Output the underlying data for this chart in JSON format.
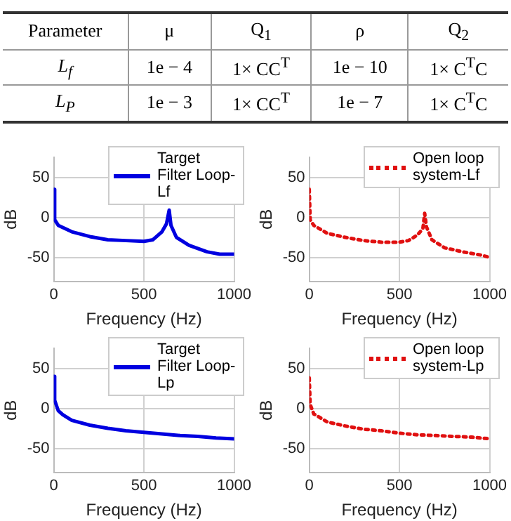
{
  "chart_data": [
    {
      "type": "other",
      "categories": [
        "Parameter",
        "μ",
        "Q$_{1}$",
        "ρ",
        "Q$_{2}$"
      ],
      "y_categories": [
        "L$_{f}$",
        "L$_{P}$"
      ],
      "cell_labels": [
        [
          "1e − 4",
          "1× CC$^{T}$",
          "1e − 10",
          "1× C$^{T}$C"
        ],
        [
          "1e − 3",
          "1× CC$^{T}$",
          "1e − 7",
          "1× C$^{T}$C"
        ]
      ]
    },
    {
      "type": "line",
      "xlabel": "Frequency (Hz)",
      "ylabel": "dB",
      "xlim": [
        0,
        1000
      ],
      "xticks": [
        0,
        500,
        1000
      ],
      "ylim": [
        -80,
        75
      ],
      "yticks": [
        -50,
        0,
        50
      ],
      "grid": true,
      "legend": "top right",
      "marker": "none",
      "line_style": "solid",
      "series": [
        {
          "name": "Target Filter Loop-Lf",
          "color": "#0000e0",
          "x": [
            0,
            5,
            25,
            100,
            200,
            300,
            400,
            500,
            550,
            600,
            625,
            640,
            650,
            680,
            750,
            850,
            920,
            1000
          ],
          "values": [
            35,
            -3,
            -10,
            -18,
            -24,
            -28,
            -29,
            -30,
            -28,
            -18,
            -8,
            9,
            -10,
            -25,
            -35,
            -43,
            -46,
            -46
          ]
        }
      ]
    },
    {
      "type": "line",
      "xlabel": "Frequency (Hz)",
      "ylabel": "dB",
      "xlim": [
        0,
        1000
      ],
      "xticks": [
        0,
        500,
        1000
      ],
      "ylim": [
        -80,
        75
      ],
      "yticks": [
        -50,
        0,
        50
      ],
      "grid": true,
      "legend": "top right",
      "marker": "none",
      "line_style": "dotted",
      "series": [
        {
          "name": "Open loop system-Lf",
          "color": "#e01010",
          "x": [
            0,
            5,
            25,
            100,
            200,
            300,
            400,
            500,
            550,
            600,
            630,
            640,
            650,
            680,
            750,
            850,
            950,
            1000
          ],
          "values": [
            35,
            -3,
            -10,
            -20,
            -25,
            -29,
            -31,
            -31,
            -29,
            -22,
            -14,
            5,
            -12,
            -28,
            -38,
            -43,
            -47,
            -50
          ]
        }
      ]
    },
    {
      "type": "line",
      "xlabel": "Frequency (Hz)",
      "ylabel": "dB",
      "xlim": [
        0,
        1000
      ],
      "xticks": [
        0,
        500,
        1000
      ],
      "ylim": [
        -80,
        75
      ],
      "yticks": [
        -50,
        0,
        50
      ],
      "grid": true,
      "legend": "top right",
      "marker": "none",
      "line_style": "solid",
      "series": [
        {
          "name": "Target Filter Loop-Lp",
          "color": "#0000e0",
          "x": [
            0,
            5,
            25,
            50,
            100,
            200,
            300,
            400,
            500,
            600,
            700,
            800,
            900,
            1000
          ],
          "values": [
            40,
            10,
            -3,
            -8,
            -15,
            -21,
            -25,
            -28,
            -30,
            -32,
            -34,
            -35,
            -37,
            -38
          ]
        }
      ]
    },
    {
      "type": "line",
      "xlabel": "Frequency (Hz)",
      "ylabel": "dB",
      "xlim": [
        0,
        1000
      ],
      "xticks": [
        0,
        500,
        1000
      ],
      "ylim": [
        -80,
        75
      ],
      "yticks": [
        -50,
        0,
        50
      ],
      "grid": true,
      "legend": "top right",
      "marker": "none",
      "line_style": "dotted",
      "series": [
        {
          "name": "Open loop system-Lp",
          "color": "#e01010",
          "x": [
            0,
            5,
            25,
            100,
            200,
            300,
            400,
            500,
            600,
            700,
            800,
            900,
            1000
          ],
          "values": [
            38,
            5,
            -7,
            -17,
            -22,
            -26,
            -28,
            -31,
            -33,
            -34,
            -35,
            -36,
            -38
          ]
        }
      ]
    }
  ]
}
